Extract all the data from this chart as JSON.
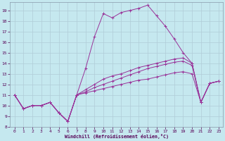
{
  "xlabel": "Windchill (Refroidissement éolien,°C)",
  "xlim": [
    -0.5,
    23.5
  ],
  "ylim": [
    8,
    19.8
  ],
  "xticks": [
    0,
    1,
    2,
    3,
    4,
    5,
    6,
    7,
    8,
    9,
    10,
    11,
    12,
    13,
    14,
    15,
    16,
    17,
    18,
    19,
    20,
    21,
    22,
    23
  ],
  "yticks": [
    8,
    9,
    10,
    11,
    12,
    13,
    14,
    15,
    16,
    17,
    18,
    19
  ],
  "bg_color": "#c5e8ef",
  "line_color": "#993399",
  "grid_color": "#b0ccd8",
  "lines": [
    {
      "x": [
        0,
        1,
        2,
        3,
        4,
        5,
        6,
        7,
        8,
        9,
        10,
        11,
        12,
        13,
        14,
        15,
        16,
        17,
        18,
        19,
        20,
        21,
        22,
        23
      ],
      "y": [
        11.0,
        9.7,
        10.0,
        10.0,
        10.3,
        9.3,
        8.5,
        11.0,
        13.5,
        16.5,
        18.7,
        18.3,
        18.8,
        19.0,
        19.2,
        19.5,
        18.5,
        17.5,
        16.3,
        15.0,
        14.0,
        10.3,
        12.1,
        12.3
      ]
    },
    {
      "x": [
        0,
        1,
        2,
        3,
        4,
        5,
        6,
        7,
        8,
        9,
        10,
        11,
        12,
        13,
        14,
        15,
        16,
        17,
        18,
        19,
        20,
        21,
        22,
        23
      ],
      "y": [
        11.0,
        9.7,
        10.0,
        10.0,
        10.3,
        9.3,
        8.5,
        11.0,
        11.5,
        12.0,
        12.5,
        12.8,
        13.0,
        13.3,
        13.6,
        13.8,
        14.0,
        14.2,
        14.4,
        14.5,
        14.0,
        10.3,
        12.1,
        12.3
      ]
    },
    {
      "x": [
        0,
        1,
        2,
        3,
        4,
        5,
        6,
        7,
        8,
        9,
        10,
        11,
        12,
        13,
        14,
        15,
        16,
        17,
        18,
        19,
        20,
        21,
        22,
        23
      ],
      "y": [
        11.0,
        9.7,
        10.0,
        10.0,
        10.3,
        9.3,
        8.5,
        11.0,
        11.3,
        11.7,
        12.0,
        12.3,
        12.6,
        12.9,
        13.2,
        13.5,
        13.7,
        13.9,
        14.1,
        14.2,
        13.8,
        10.3,
        12.1,
        12.3
      ]
    },
    {
      "x": [
        0,
        1,
        2,
        3,
        4,
        5,
        6,
        7,
        8,
        9,
        10,
        11,
        12,
        13,
        14,
        15,
        16,
        17,
        18,
        19,
        20,
        21,
        22,
        23
      ],
      "y": [
        11.0,
        9.7,
        10.0,
        10.0,
        10.3,
        9.3,
        8.5,
        11.0,
        11.2,
        11.4,
        11.6,
        11.8,
        12.0,
        12.2,
        12.4,
        12.5,
        12.7,
        12.9,
        13.1,
        13.2,
        13.0,
        10.3,
        12.1,
        12.3
      ]
    }
  ]
}
